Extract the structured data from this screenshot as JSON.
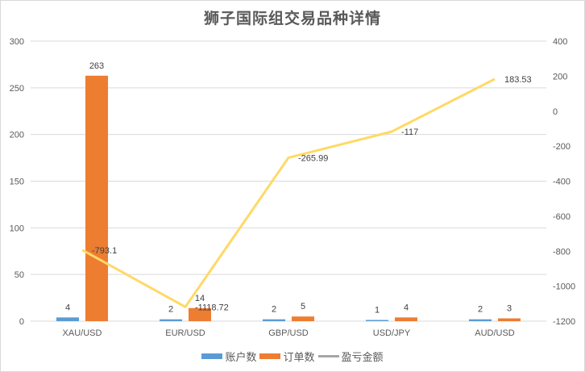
{
  "chart_data": {
    "type": "bar",
    "title": "狮子国际组交易品种详情",
    "categories": [
      "XAU/USD",
      "EUR/USD",
      "GBP/USD",
      "USD/JPY",
      "AUD/USD"
    ],
    "series": [
      {
        "name": "账户数",
        "type": "bar",
        "axis": "left",
        "color": "#5b9bd5",
        "values": [
          4,
          2,
          2,
          1,
          2
        ],
        "labels": [
          "4",
          "2",
          "2",
          "1",
          "2"
        ]
      },
      {
        "name": "订单数",
        "type": "bar",
        "axis": "left",
        "color": "#ed7d31",
        "values": [
          263,
          14,
          5,
          4,
          3
        ],
        "labels": [
          "263",
          "14",
          "5",
          "4",
          "3"
        ]
      },
      {
        "name": "盈亏金额",
        "type": "line",
        "axis": "right",
        "color": "#ffd966",
        "legend_color": "#a5a5a5",
        "values": [
          -793.1,
          -1118.72,
          -265.99,
          -117,
          183.53
        ],
        "labels": [
          "-793.1",
          "-1118.72",
          "-265.99",
          "-117",
          "183.53"
        ]
      }
    ],
    "xlabel": "",
    "ylabel": "",
    "ylim": [
      0,
      300
    ],
    "y_ticks": [
      "300",
      "250",
      "200",
      "150",
      "100",
      "50",
      "0"
    ],
    "y2lim": [
      -1200,
      400
    ],
    "y2_ticks": [
      "400",
      "200",
      "0",
      "-200",
      "-400",
      "-600",
      "-800",
      "-1000",
      "-1200"
    ],
    "grid": true,
    "legend_position": "bottom"
  },
  "legend": {
    "items": [
      {
        "label": "账户数",
        "color": "#5b9bd5"
      },
      {
        "label": "订单数",
        "color": "#ed7d31"
      },
      {
        "label": "盈亏金额",
        "color": "#a5a5a5"
      }
    ]
  }
}
